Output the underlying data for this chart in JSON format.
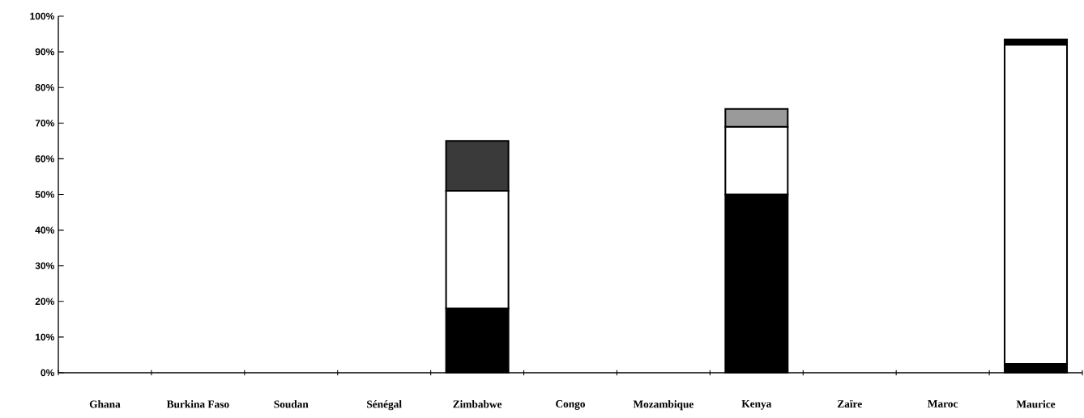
{
  "chart_data": {
    "type": "bar",
    "stacked": true,
    "categories": [
      "Ghana",
      "Burkina Faso",
      "Soudan",
      "Sénégal",
      "Zimbabwe",
      "Congo",
      "Mozambique",
      "Kenya",
      "Zaïre",
      "Maroc",
      "Maurice"
    ],
    "series": [
      {
        "color": "#000000",
        "values": [
          null,
          null,
          null,
          null,
          18,
          null,
          null,
          50,
          null,
          null,
          2.5
        ]
      },
      {
        "color": "#ffffff",
        "values": [
          null,
          null,
          null,
          null,
          33,
          null,
          null,
          19,
          null,
          null,
          89.5
        ]
      },
      {
        "colors": [
          null,
          null,
          null,
          null,
          "#3a3a3a",
          null,
          null,
          "#9a9a9a",
          null,
          null,
          "#000000"
        ],
        "values": [
          null,
          null,
          null,
          null,
          14,
          null,
          null,
          5,
          null,
          null,
          1.5
        ]
      }
    ],
    "ylim": [
      0,
      100
    ],
    "yticks": [
      {
        "value": 0,
        "label": "0%"
      },
      {
        "value": 10,
        "label": "10%"
      },
      {
        "value": 20,
        "label": "20%"
      },
      {
        "value": 30,
        "label": "30%"
      },
      {
        "value": 40,
        "label": "40%"
      },
      {
        "value": 50,
        "label": "50%"
      },
      {
        "value": 60,
        "label": "60%"
      },
      {
        "value": 70,
        "label": "70%"
      },
      {
        "value": 80,
        "label": "80%"
      },
      {
        "value": 90,
        "label": "90%"
      },
      {
        "value": 100,
        "label": "100%"
      }
    ],
    "grid": false
  }
}
